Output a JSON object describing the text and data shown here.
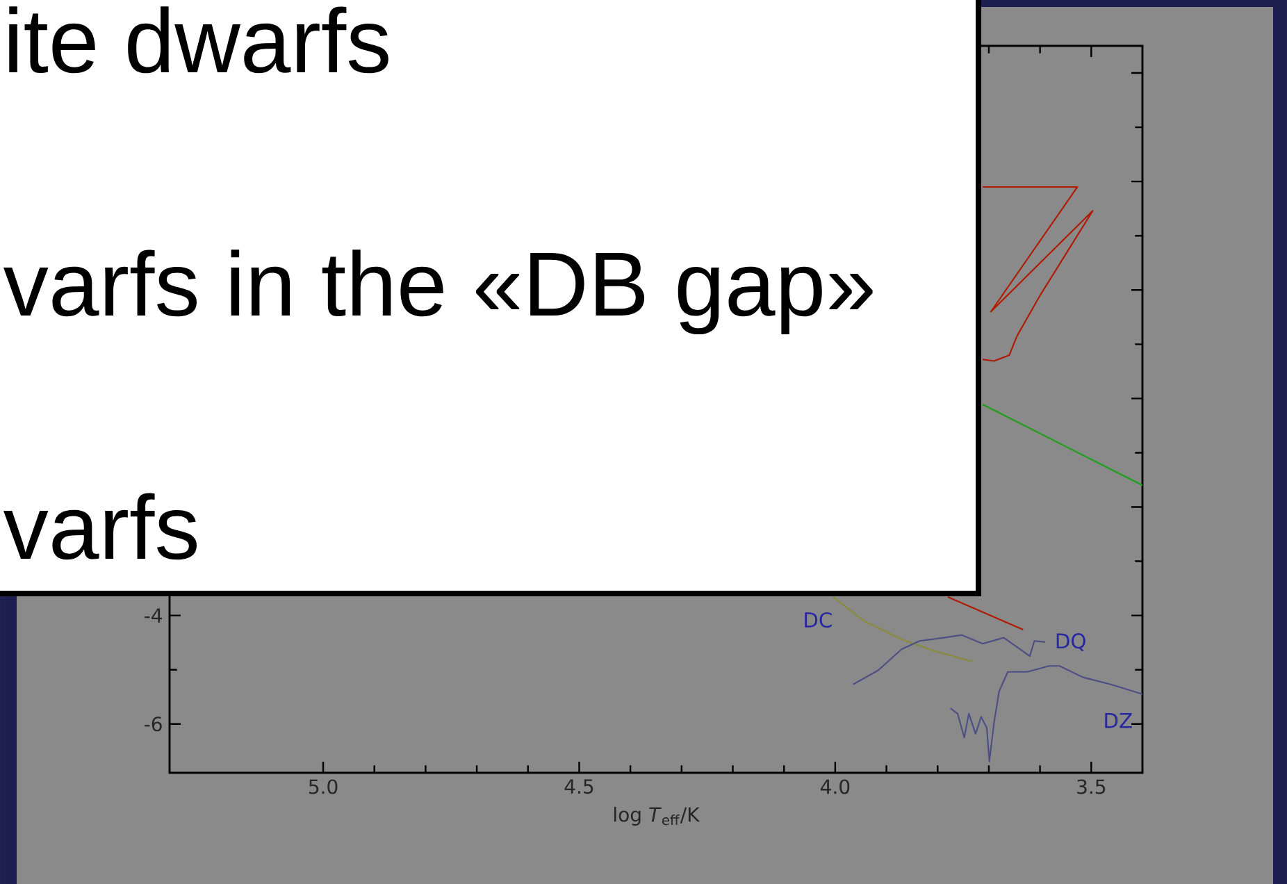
{
  "chart_data": {
    "type": "line",
    "xlabel": "log *T*$_{eff}$/K",
    "xlim": [
      5.3,
      3.4
    ],
    "ylim": [
      -6.9,
      6.5
    ],
    "xticks": [
      {
        "value": 5,
        "label": "5.0"
      },
      {
        "value": 4.5,
        "label": "4.5"
      },
      {
        "value": 4,
        "label": "4.0"
      },
      {
        "value": 3.5,
        "label": "3.5"
      }
    ],
    "yticks": [
      -6,
      -4,
      {
        "value": -2,
        "label": null
      },
      {
        "value": 0,
        "label": null
      },
      {
        "value": 2,
        "label": null
      },
      {
        "value": 4,
        "label": null
      },
      {
        "value": 6,
        "label": null
      }
    ],
    "series": [
      {
        "color": "#b01a00",
        "x": [
          3.712,
          3.527,
          3.696,
          3.497,
          3.6,
          3.645,
          3.66,
          3.69,
          3.712
        ],
        "values": [
          3.9,
          3.9,
          1.6,
          3.46,
          1.9,
          1.15,
          0.8,
          0.69,
          0.72
        ]
      },
      {
        "color": "#b01a00",
        "x": [
          3.78,
          3.633
        ],
        "values": [
          -3.66,
          -4.26
        ]
      },
      {
        "color": "#1aa01a",
        "x": [
          3.712,
          3.4
        ],
        "values": [
          -0.11,
          -1.6
        ]
      },
      {
        "name": "DC",
        "color": "#8a8a3c",
        "x": [
          4.004,
          3.944,
          3.87,
          3.808,
          3.731
        ],
        "values": [
          -3.66,
          -4.1,
          -4.44,
          -4.65,
          -4.85
        ]
      },
      {
        "name": "DQ",
        "color": "#4e4e86",
        "x": [
          3.965,
          3.916,
          3.87,
          3.835,
          3.788,
          3.753,
          3.712,
          3.671,
          3.639,
          3.62,
          3.611,
          3.59
        ],
        "values": [
          -5.27,
          -5.01,
          -4.62,
          -4.47,
          -4.41,
          -4.36,
          -4.52,
          -4.41,
          -4.62,
          -4.75,
          -4.47,
          -4.49
        ]
      },
      {
        "name": "DZ",
        "color": "#4e4e86",
        "x": [
          3.775,
          3.761,
          3.748,
          3.739,
          3.726,
          3.715,
          3.704,
          3.699,
          3.69,
          3.68,
          3.663,
          3.625,
          3.582,
          3.562,
          3.516,
          3.462,
          3.4
        ],
        "values": [
          -5.71,
          -5.81,
          -6.25,
          -5.81,
          -6.18,
          -5.87,
          -6.07,
          -6.69,
          -5.99,
          -5.4,
          -5.04,
          -5.04,
          -4.93,
          -4.93,
          -5.14,
          -5.27,
          -5.45
        ]
      }
    ],
    "annotations": [
      "ite dwarfs",
      "varfs in the «DB gap»",
      "varfs"
    ]
  }
}
